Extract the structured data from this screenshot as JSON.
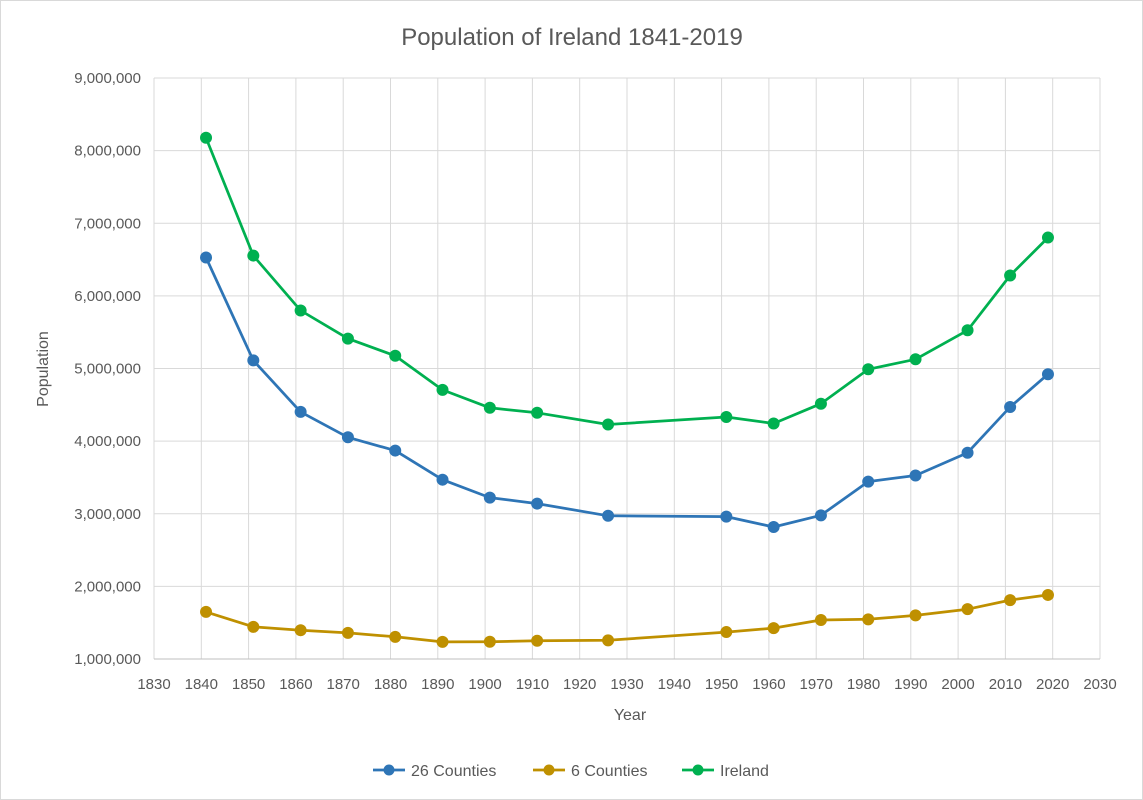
{
  "chart_data": {
    "type": "line",
    "title": "Population of Ireland 1841-2019",
    "xlabel": "Year",
    "ylabel": "Population",
    "xlim": [
      1830,
      2030
    ],
    "ylim": [
      1000000,
      9000000
    ],
    "x_ticks": [
      1830,
      1840,
      1850,
      1860,
      1870,
      1880,
      1890,
      1900,
      1910,
      1920,
      1930,
      1940,
      1950,
      1960,
      1970,
      1980,
      1990,
      2000,
      2010,
      2020,
      2030
    ],
    "y_ticks": [
      1000000,
      2000000,
      3000000,
      4000000,
      5000000,
      6000000,
      7000000,
      8000000,
      9000000
    ],
    "x_tick_labels": [
      "1830",
      "1840",
      "1850",
      "1860",
      "1870",
      "1880",
      "1890",
      "1900",
      "1910",
      "1920",
      "1930",
      "1940",
      "1950",
      "1960",
      "1970",
      "1980",
      "1990",
      "2000",
      "2010",
      "2020",
      "2030"
    ],
    "y_tick_labels": [
      "1,000,000",
      "2,000,000",
      "3,000,000",
      "4,000,000",
      "5,000,000",
      "6,000,000",
      "7,000,000",
      "8,000,000",
      "9,000,000"
    ],
    "grid": true,
    "legend_position": "bottom",
    "x": [
      1841,
      1851,
      1861,
      1871,
      1881,
      1891,
      1901,
      1911,
      1926,
      1951,
      1961,
      1971,
      1981,
      1991,
      2002,
      2011,
      2019
    ],
    "series": [
      {
        "name": "26 Counties",
        "color": "#2e75b6",
        "values": [
          6529000,
          5112000,
          4402000,
          4053000,
          3870000,
          3469000,
          3222000,
          3140000,
          2972000,
          2961000,
          2818000,
          2978000,
          3443000,
          3526000,
          3840000,
          4470000,
          4921000
        ]
      },
      {
        "name": "6 Counties",
        "color": "#bf9000",
        "values": [
          1649000,
          1443000,
          1396000,
          1359000,
          1305000,
          1236000,
          1237000,
          1251000,
          1257000,
          1371000,
          1425000,
          1537000,
          1546000,
          1601000,
          1686000,
          1811000,
          1882000
        ]
      },
      {
        "name": "Ireland",
        "color": "#00b050",
        "values": [
          8178000,
          6555000,
          5798000,
          5412000,
          5175000,
          4705000,
          4459000,
          4390000,
          4229000,
          4332000,
          4243000,
          4515000,
          4989000,
          5127000,
          5526000,
          6281000,
          6803000
        ]
      }
    ]
  }
}
